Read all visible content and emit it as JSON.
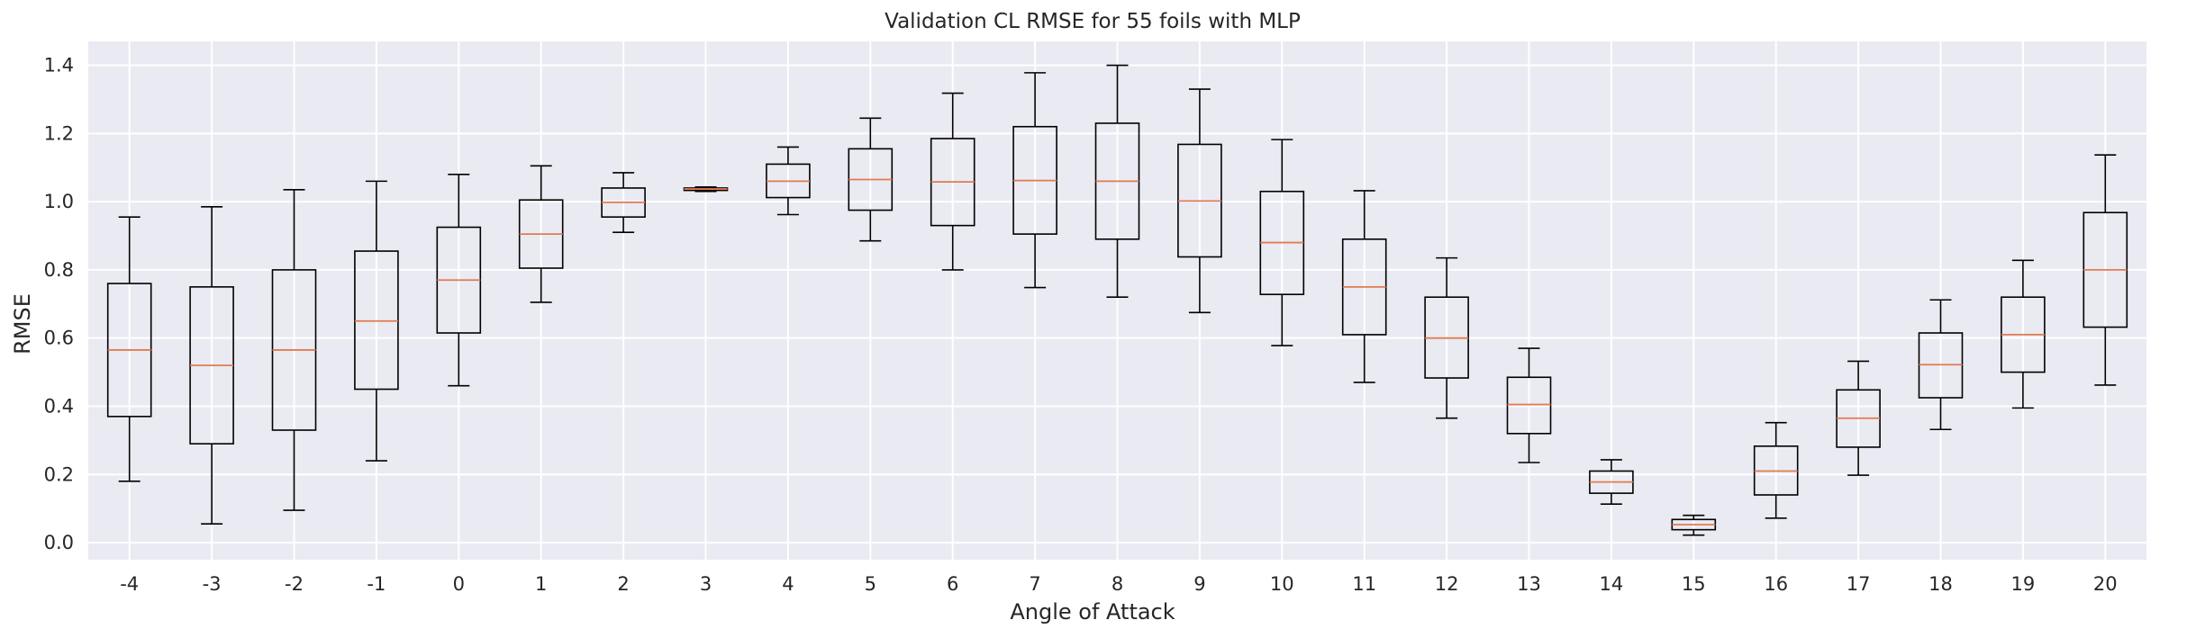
{
  "chart_data": {
    "type": "box",
    "title": "Validation CL RMSE for 55 foils with MLP",
    "xlabel": "Angle of Attack",
    "ylabel": "RMSE",
    "ylim": [
      -0.05,
      1.47
    ],
    "yticks": [
      0.0,
      0.2,
      0.4,
      0.6,
      0.8,
      1.0,
      1.2,
      1.4
    ],
    "ytick_labels": [
      "0.0",
      "0.2",
      "0.4",
      "0.6",
      "0.8",
      "1.0",
      "1.2",
      "1.4"
    ],
    "grid": true,
    "background": "#eaeaf2",
    "box_color": "#000000",
    "median_color": "#e07b50",
    "categories": [
      "-4",
      "-3",
      "-2",
      "-1",
      "0",
      "1",
      "2",
      "3",
      "4",
      "5",
      "6",
      "7",
      "8",
      "9",
      "10",
      "11",
      "12",
      "13",
      "14",
      "15",
      "16",
      "17",
      "18",
      "19",
      "20"
    ],
    "boxes": [
      {
        "whislo": 0.18,
        "q1": 0.37,
        "med": 0.565,
        "q3": 0.76,
        "whishi": 0.955
      },
      {
        "whislo": 0.055,
        "q1": 0.29,
        "med": 0.52,
        "q3": 0.75,
        "whishi": 0.985
      },
      {
        "whislo": 0.095,
        "q1": 0.33,
        "med": 0.565,
        "q3": 0.8,
        "whishi": 1.035
      },
      {
        "whislo": 0.24,
        "q1": 0.45,
        "med": 0.65,
        "q3": 0.855,
        "whishi": 1.06
      },
      {
        "whislo": 0.46,
        "q1": 0.615,
        "med": 0.77,
        "q3": 0.925,
        "whishi": 1.08
      },
      {
        "whislo": 0.705,
        "q1": 0.805,
        "med": 0.905,
        "q3": 1.005,
        "whishi": 1.105
      },
      {
        "whislo": 0.91,
        "q1": 0.955,
        "med": 0.998,
        "q3": 1.04,
        "whishi": 1.085
      },
      {
        "whislo": 1.03,
        "q1": 1.033,
        "med": 1.037,
        "q3": 1.04,
        "whishi": 1.043
      },
      {
        "whislo": 0.962,
        "q1": 1.012,
        "med": 1.06,
        "q3": 1.11,
        "whishi": 1.16
      },
      {
        "whislo": 0.885,
        "q1": 0.975,
        "med": 1.065,
        "q3": 1.155,
        "whishi": 1.245
      },
      {
        "whislo": 0.8,
        "q1": 0.93,
        "med": 1.058,
        "q3": 1.185,
        "whishi": 1.318
      },
      {
        "whislo": 0.748,
        "q1": 0.905,
        "med": 1.062,
        "q3": 1.22,
        "whishi": 1.378
      },
      {
        "whislo": 0.72,
        "q1": 0.89,
        "med": 1.06,
        "q3": 1.23,
        "whishi": 1.4
      },
      {
        "whislo": 0.675,
        "q1": 0.838,
        "med": 1.002,
        "q3": 1.168,
        "whishi": 1.33
      },
      {
        "whislo": 0.578,
        "q1": 0.728,
        "med": 0.88,
        "q3": 1.03,
        "whishi": 1.182
      },
      {
        "whislo": 0.47,
        "q1": 0.61,
        "med": 0.75,
        "q3": 0.89,
        "whishi": 1.032
      },
      {
        "whislo": 0.365,
        "q1": 0.483,
        "med": 0.6,
        "q3": 0.72,
        "whishi": 0.835
      },
      {
        "whislo": 0.235,
        "q1": 0.32,
        "med": 0.405,
        "q3": 0.485,
        "whishi": 0.57
      },
      {
        "whislo": 0.113,
        "q1": 0.145,
        "med": 0.178,
        "q3": 0.21,
        "whishi": 0.243
      },
      {
        "whislo": 0.022,
        "q1": 0.038,
        "med": 0.053,
        "q3": 0.068,
        "whishi": 0.08
      },
      {
        "whislo": 0.072,
        "q1": 0.14,
        "med": 0.21,
        "q3": 0.283,
        "whishi": 0.352
      },
      {
        "whislo": 0.198,
        "q1": 0.28,
        "med": 0.365,
        "q3": 0.448,
        "whishi": 0.532
      },
      {
        "whislo": 0.332,
        "q1": 0.425,
        "med": 0.522,
        "q3": 0.615,
        "whishi": 0.712
      },
      {
        "whislo": 0.395,
        "q1": 0.5,
        "med": 0.61,
        "q3": 0.72,
        "whishi": 0.828
      },
      {
        "whislo": 0.462,
        "q1": 0.632,
        "med": 0.8,
        "q3": 0.968,
        "whishi": 1.137
      }
    ]
  }
}
